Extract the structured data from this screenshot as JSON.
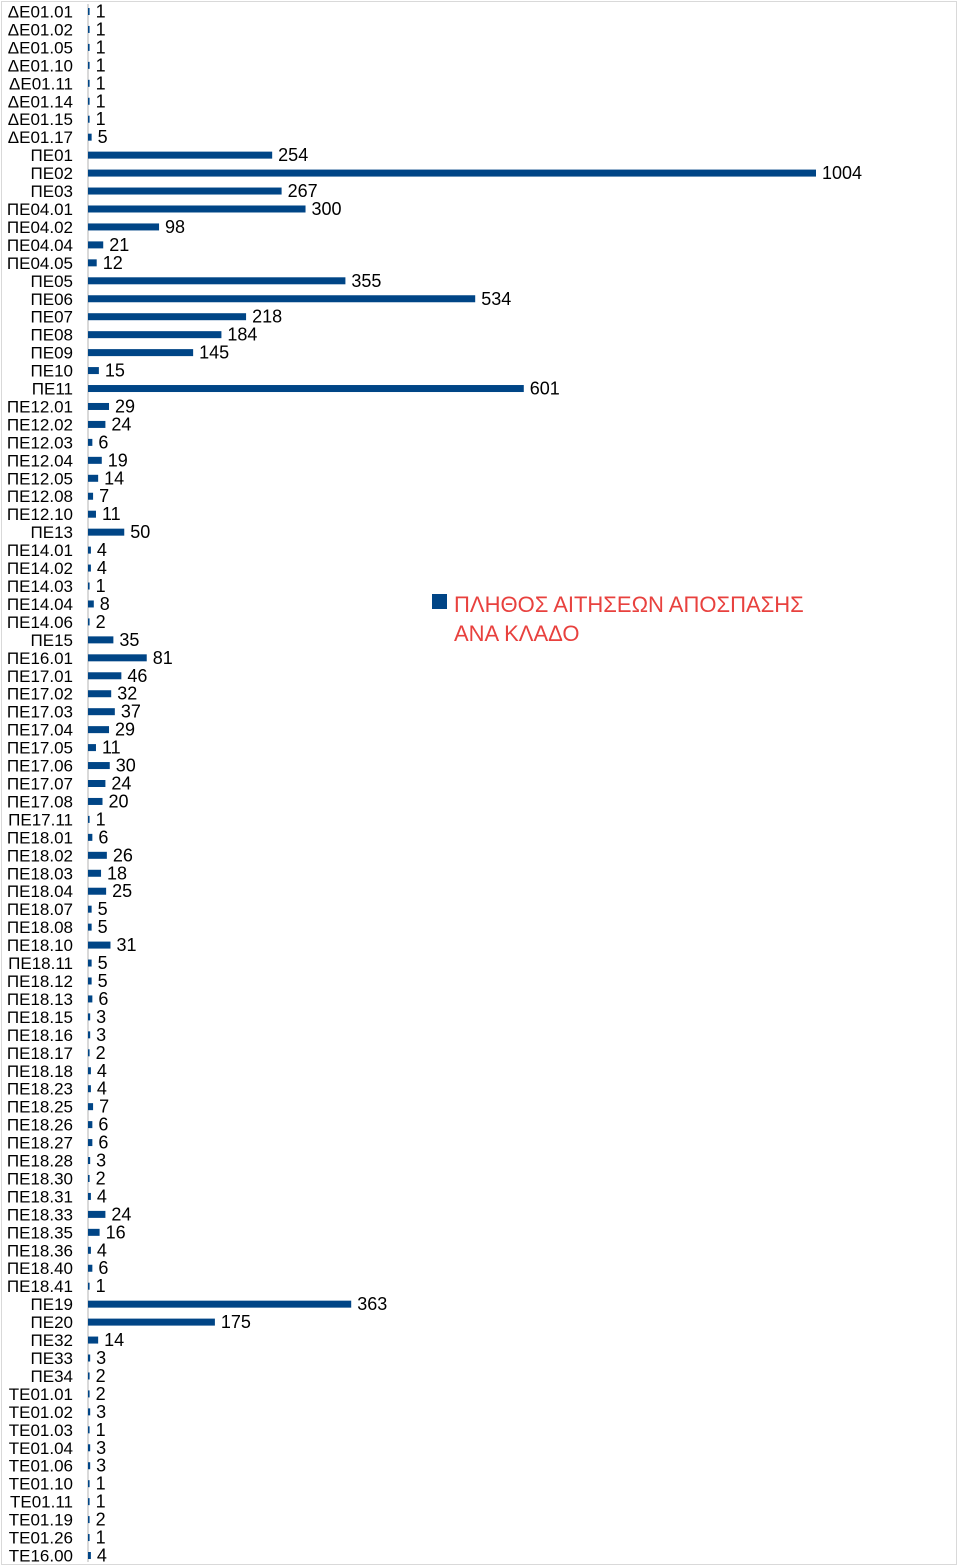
{
  "chart_data": {
    "type": "bar",
    "orientation": "horizontal",
    "bar_color": "#004586",
    "legend_color": "#e8413e",
    "legend_position": "right",
    "grid": false,
    "xlim": [
      0,
      1004
    ],
    "legend": [
      "ΠΛΗΘΟΣ ΑΙΤΗΣΕΩΝ ΑΠΟΣΠΑΣΗΣ",
      "ΑΝΑ ΚΛΑΔΟ"
    ],
    "series": [
      {
        "name": "ΠΛΗΘΟΣ ΑΙΤΗΣΕΩΝ ΑΠΟΣΠΑΣΗΣ ΑΝΑ ΚΛΑΔΟ",
        "values": [
          1,
          1,
          1,
          1,
          1,
          1,
          1,
          5,
          254,
          1004,
          267,
          300,
          98,
          21,
          12,
          355,
          534,
          218,
          184,
          145,
          15,
          601,
          29,
          24,
          6,
          19,
          14,
          7,
          11,
          50,
          4,
          4,
          1,
          8,
          2,
          35,
          81,
          46,
          32,
          37,
          29,
          11,
          30,
          24,
          20,
          1,
          6,
          26,
          18,
          25,
          5,
          5,
          31,
          5,
          5,
          6,
          3,
          3,
          2,
          4,
          4,
          7,
          6,
          6,
          3,
          2,
          4,
          24,
          16,
          4,
          6,
          1,
          363,
          175,
          14,
          3,
          2,
          2,
          3,
          1,
          3,
          3,
          1,
          1,
          2,
          1,
          4
        ]
      }
    ],
    "categories": [
      "ΔΕ01.01",
      "ΔΕ01.02",
      "ΔΕ01.05",
      "ΔΕ01.10",
      "ΔΕ01.11",
      "ΔΕ01.14",
      "ΔΕ01.15",
      "ΔΕ01.17",
      "ΠΕ01",
      "ΠΕ02",
      "ΠΕ03",
      "ΠΕ04.01",
      "ΠΕ04.02",
      "ΠΕ04.04",
      "ΠΕ04.05",
      "ΠΕ05",
      "ΠΕ06",
      "ΠΕ07",
      "ΠΕ08",
      "ΠΕ09",
      "ΠΕ10",
      "ΠΕ11",
      "ΠΕ12.01",
      "ΠΕ12.02",
      "ΠΕ12.03",
      "ΠΕ12.04",
      "ΠΕ12.05",
      "ΠΕ12.08",
      "ΠΕ12.10",
      "ΠΕ13",
      "ΠΕ14.01",
      "ΠΕ14.02",
      "ΠΕ14.03",
      "ΠΕ14.04",
      "ΠΕ14.06",
      "ΠΕ15",
      "ΠΕ16.01",
      "ΠΕ17.01",
      "ΠΕ17.02",
      "ΠΕ17.03",
      "ΠΕ17.04",
      "ΠΕ17.05",
      "ΠΕ17.06",
      "ΠΕ17.07",
      "ΠΕ17.08",
      "ΠΕ17.11",
      "ΠΕ18.01",
      "ΠΕ18.02",
      "ΠΕ18.03",
      "ΠΕ18.04",
      "ΠΕ18.07",
      "ΠΕ18.08",
      "ΠΕ18.10",
      "ΠΕ18.11",
      "ΠΕ18.12",
      "ΠΕ18.13",
      "ΠΕ18.15",
      "ΠΕ18.16",
      "ΠΕ18.17",
      "ΠΕ18.18",
      "ΠΕ18.23",
      "ΠΕ18.25",
      "ΠΕ18.26",
      "ΠΕ18.27",
      "ΠΕ18.28",
      "ΠΕ18.30",
      "ΠΕ18.31",
      "ΠΕ18.33",
      "ΠΕ18.35",
      "ΠΕ18.36",
      "ΠΕ18.40",
      "ΠΕ18.41",
      "ΠΕ19",
      "ΠΕ20",
      "ΠΕ32",
      "ΠΕ33",
      "ΠΕ34",
      "ΤΕ01.01",
      "ΤΕ01.02",
      "ΤΕ01.03",
      "ΤΕ01.04",
      "ΤΕ01.06",
      "ΤΕ01.10",
      "ΤΕ01.11",
      "ΤΕ01.19",
      "ΤΕ01.26",
      "ΤΕ16.00"
    ]
  }
}
